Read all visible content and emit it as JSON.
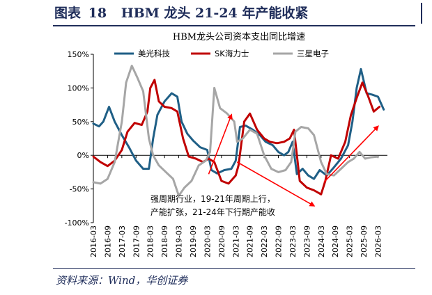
{
  "figure": {
    "label": "图表",
    "number": "18",
    "title": "HBM 龙头 21-24 年产能收紧",
    "source": "资料来源：Wind，华创证券"
  },
  "chart_data": {
    "type": "line",
    "title": "HBM龙头公司资本支出同比增速",
    "xlabel": "",
    "ylabel": "",
    "ylim": [
      -100,
      150
    ],
    "yticks": [
      "150%",
      "100%",
      "50%",
      "0%",
      "-50%",
      "-100%"
    ],
    "ytick_values": [
      150,
      100,
      50,
      0,
      -50,
      -100
    ],
    "xticks": [
      "2016-03",
      "2016-09",
      "2017-03",
      "2017-09",
      "2018-03",
      "2018-09",
      "2019-03",
      "2019-09",
      "2020-03",
      "2020-09",
      "2021-03",
      "2021-09",
      "2022-03",
      "2022-09",
      "2023-03",
      "2023-09",
      "2024-03",
      "2024-09",
      "2025-03",
      "2025-09",
      "2026-03"
    ],
    "xlim": [
      2016.0,
      2026.33
    ],
    "grid": false,
    "legend_position": "top",
    "annotation": [
      "强周期行业，19-21年周期上行，",
      "产能扩张，21-24年下行期产能收"
    ],
    "series": [
      {
        "name": "美光科技",
        "color": "#1f5f86",
        "x": [
          2016.0,
          2016.2,
          2016.35,
          2016.55,
          2016.75,
          2017.0,
          2017.25,
          2017.5,
          2017.75,
          2017.95,
          2018.1,
          2018.25,
          2018.5,
          2018.75,
          2018.95,
          2019.1,
          2019.3,
          2019.5,
          2019.75,
          2020.0,
          2020.15,
          2020.35,
          2020.6,
          2020.85,
          2021.0,
          2021.15,
          2021.35,
          2021.6,
          2021.85,
          2022.05,
          2022.3,
          2022.5,
          2022.7,
          2022.85,
          2023.0,
          2023.15,
          2023.35,
          2023.55,
          2023.75,
          2023.95,
          2024.2,
          2024.45,
          2024.7,
          2024.95,
          2025.1,
          2025.25,
          2025.4,
          2025.6,
          2025.8,
          2026.0,
          2026.2
        ],
        "y": [
          47,
          43,
          50,
          72,
          50,
          30,
          12,
          -8,
          -20,
          -20,
          25,
          60,
          80,
          92,
          87,
          50,
          32,
          22,
          12,
          8,
          -22,
          -27,
          -22,
          -20,
          -8,
          42,
          44,
          38,
          30,
          20,
          15,
          5,
          0,
          5,
          20,
          -28,
          -20,
          -30,
          -35,
          -22,
          -30,
          -18,
          -5,
          15,
          50,
          100,
          128,
          92,
          90,
          87,
          68
        ]
      },
      {
        "name": "SK海力士",
        "color": "#c00000",
        "x": [
          2016.0,
          2016.25,
          2016.5,
          2016.75,
          2017.0,
          2017.2,
          2017.45,
          2017.7,
          2017.9,
          2018.0,
          2018.15,
          2018.3,
          2018.5,
          2018.75,
          2018.95,
          2019.15,
          2019.35,
          2019.6,
          2019.85,
          2020.05,
          2020.25,
          2020.5,
          2020.75,
          2021.0,
          2021.1,
          2021.3,
          2021.5,
          2021.75,
          2022.0,
          2022.2,
          2022.45,
          2022.7,
          2022.9,
          2023.05,
          2023.25,
          2023.5,
          2023.75,
          2024.0,
          2024.15,
          2024.35,
          2024.6,
          2024.85,
          2025.05,
          2025.25,
          2025.45,
          2025.65,
          2025.85,
          2026.05
        ],
        "y": [
          -2,
          -10,
          -16,
          -8,
          8,
          35,
          48,
          45,
          65,
          100,
          112,
          80,
          72,
          70,
          65,
          25,
          -2,
          -5,
          -10,
          -5,
          -10,
          -38,
          -42,
          -30,
          -15,
          50,
          62,
          38,
          25,
          20,
          18,
          20,
          25,
          38,
          -38,
          -48,
          -52,
          -58,
          -38,
          0,
          -5,
          20,
          60,
          85,
          108,
          88,
          65,
          72
        ]
      },
      {
        "name": "三星电子",
        "color": "#a6a6a6",
        "x": [
          2016.0,
          2016.25,
          2016.5,
          2016.75,
          2017.0,
          2017.15,
          2017.35,
          2017.55,
          2017.75,
          2017.95,
          2018.1,
          2018.3,
          2018.55,
          2018.8,
          2019.0,
          2019.2,
          2019.45,
          2019.7,
          2019.95,
          2020.1,
          2020.25,
          2020.45,
          2020.7,
          2020.95,
          2021.05,
          2021.25,
          2021.5,
          2021.75,
          2022.0,
          2022.25,
          2022.5,
          2022.75,
          2022.95,
          2023.1,
          2023.3,
          2023.55,
          2023.75,
          2024.0,
          2024.2,
          2024.45,
          2024.7,
          2024.95,
          2025.15,
          2025.35,
          2025.55,
          2025.75,
          2026.0
        ],
        "y": [
          -40,
          -42,
          -35,
          -10,
          50,
          108,
          133,
          115,
          95,
          25,
          0,
          -15,
          -25,
          -35,
          -60,
          -48,
          -38,
          -15,
          -8,
          5,
          100,
          70,
          62,
          50,
          20,
          25,
          38,
          32,
          0,
          -20,
          -25,
          -22,
          -10,
          35,
          42,
          40,
          30,
          -10,
          -28,
          -30,
          -20,
          -10,
          -5,
          5,
          -5,
          -3,
          -2
        ]
      }
    ]
  }
}
